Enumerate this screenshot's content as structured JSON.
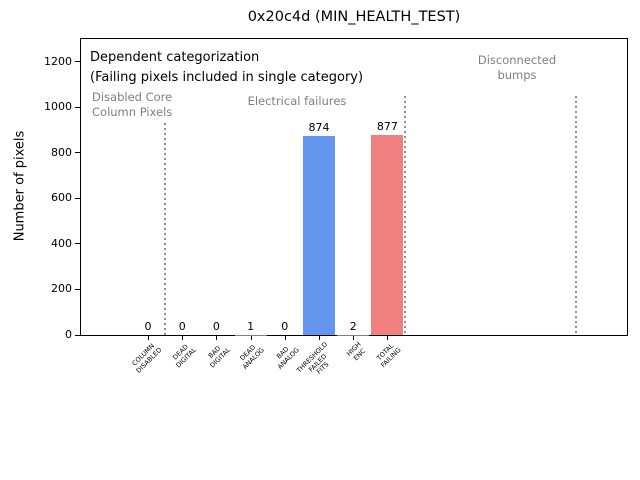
{
  "chart": {
    "title": "0x20c4d (MIN_HEALTH_TEST)",
    "ylabel": "Number of pixels",
    "annotations": {
      "dependent_line1": "Dependent categorization",
      "dependent_line2": "(Failing pixels included in single category)",
      "region_disabled": "Disabled Core\nColumn Pixels",
      "region_electrical": "Electrical failures",
      "region_disconnected": "Disconnected\nbumps"
    }
  },
  "chart_data": {
    "type": "bar",
    "title": "0x20c4d (MIN_HEALTH_TEST)",
    "xlabel": "",
    "ylabel": "Number of pixels",
    "ylim": [
      0,
      1305
    ],
    "yticks": [
      0,
      200,
      400,
      600,
      800,
      1000,
      1200
    ],
    "grid": false,
    "legend": null,
    "categories": [
      "COLUMN\nDISABLED",
      "DEAD\nDIGITAL",
      "BAD\nDIGITAL",
      "DEAD\nANALOG",
      "BAD\nANALOG",
      "THRESHOLD\nFAILED\nFITS",
      "HIGH\nENC",
      "TOTAL\nFAILING"
    ],
    "values": [
      0,
      0,
      0,
      1,
      0,
      874,
      2,
      877
    ],
    "bar_labels": [
      "0",
      "0",
      "0",
      "1",
      "0",
      "874",
      "2",
      "877"
    ],
    "bar_colors": [
      "#808080",
      "#808080",
      "#808080",
      "#808080",
      "#808080",
      "#6495ED",
      "#808080",
      "#F08080"
    ],
    "region_separator_positions": [
      0.5,
      7.5,
      12.5
    ],
    "regions": [
      {
        "label": "Disabled Core\nColumn Pixels"
      },
      {
        "label": "Electrical failures"
      },
      {
        "label": "Disconnected\nbumps"
      }
    ],
    "colors": {
      "highlight_blue": "#6495ED",
      "highlight_red": "#F08080",
      "annotation_gray": "#808080",
      "separator_gray": "#8f8f8f"
    }
  }
}
